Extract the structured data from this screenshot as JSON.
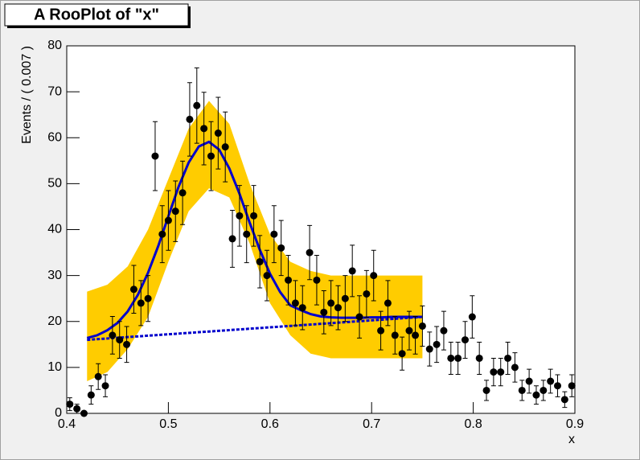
{
  "chart_data": {
    "type": "scatter",
    "title": "A RooPlot of \"x\"",
    "x_label": "x",
    "y_label": "Events / ( 0.007 )",
    "xlim": [
      0.4,
      0.9
    ],
    "ylim": [
      0,
      80
    ],
    "xticks": [
      0.4,
      0.5,
      0.6,
      0.7,
      0.8,
      0.9
    ],
    "yticks": [
      0,
      10,
      20,
      30,
      40,
      50,
      60,
      70,
      80
    ],
    "points": {
      "color": "#000000",
      "x": [
        0.403,
        0.41,
        0.417,
        0.424,
        0.431,
        0.438,
        0.445,
        0.452,
        0.459,
        0.466,
        0.473,
        0.48,
        0.487,
        0.494,
        0.5,
        0.507,
        0.514,
        0.521,
        0.528,
        0.535,
        0.542,
        0.549,
        0.556,
        0.563,
        0.57,
        0.577,
        0.584,
        0.59,
        0.597,
        0.604,
        0.611,
        0.618,
        0.625,
        0.632,
        0.639,
        0.646,
        0.653,
        0.66,
        0.667,
        0.674,
        0.681,
        0.688,
        0.695,
        0.702,
        0.709,
        0.716,
        0.723,
        0.73,
        0.737,
        0.743,
        0.75,
        0.757,
        0.764,
        0.771,
        0.778,
        0.785,
        0.792,
        0.799,
        0.806,
        0.813,
        0.82,
        0.827,
        0.834,
        0.841,
        0.848,
        0.855,
        0.862,
        0.869,
        0.876,
        0.883,
        0.89,
        0.897
      ],
      "values": [
        2,
        1,
        0,
        4,
        8,
        6,
        17,
        16,
        15,
        27,
        24,
        25,
        56,
        39,
        42,
        44,
        48,
        64,
        67,
        62,
        56,
        61,
        58,
        38,
        43,
        39,
        43,
        33,
        30,
        39,
        36,
        29,
        24,
        23,
        35,
        29,
        22,
        24,
        23,
        25,
        31,
        21,
        26,
        30,
        18,
        24,
        17,
        13,
        18,
        17,
        19,
        14,
        15,
        18,
        12,
        12,
        16,
        21,
        12,
        5,
        9,
        9,
        12,
        10,
        5,
        7,
        4,
        5,
        7,
        6,
        3,
        6
      ],
      "errors": [
        1.4,
        1,
        0,
        2,
        2.8,
        2.4,
        4.1,
        4,
        3.9,
        5.2,
        4.9,
        5,
        7.5,
        6.2,
        6.5,
        6.6,
        6.9,
        8,
        8.2,
        7.9,
        7.5,
        7.8,
        7.6,
        6.2,
        6.6,
        6.2,
        6.6,
        5.7,
        5.5,
        6.2,
        6,
        5.4,
        4.9,
        4.8,
        5.9,
        5.4,
        4.7,
        4.9,
        4.8,
        5,
        5.6,
        4.6,
        5.1,
        5.5,
        4.2,
        4.9,
        4.1,
        3.6,
        4.2,
        4.1,
        4.4,
        3.7,
        3.9,
        4.2,
        3.5,
        3.5,
        4,
        4.6,
        3.5,
        2.2,
        3,
        3,
        3.5,
        3.2,
        2.2,
        2.6,
        2,
        2.2,
        2.6,
        2.4,
        1.7,
        2.4
      ]
    },
    "band": {
      "color": "#ffcc00",
      "x": [
        0.42,
        0.44,
        0.46,
        0.48,
        0.5,
        0.52,
        0.54,
        0.56,
        0.58,
        0.6,
        0.62,
        0.64,
        0.66,
        0.7,
        0.75
      ],
      "upper": [
        26.5,
        28,
        32,
        40,
        51,
        62,
        68,
        63,
        50,
        39,
        33,
        31,
        30,
        30,
        30
      ],
      "lower": [
        7,
        9,
        14,
        21,
        33,
        44,
        49,
        47,
        37,
        24,
        17,
        13,
        12,
        12,
        12
      ]
    },
    "fit": {
      "color": "#0000cc",
      "x": [
        0.42,
        0.43,
        0.44,
        0.45,
        0.46,
        0.47,
        0.48,
        0.49,
        0.5,
        0.51,
        0.52,
        0.53,
        0.54,
        0.55,
        0.56,
        0.57,
        0.58,
        0.59,
        0.6,
        0.61,
        0.62,
        0.63,
        0.64,
        0.65,
        0.66,
        0.67,
        0.68,
        0.69,
        0.7,
        0.71,
        0.72,
        0.73,
        0.74,
        0.75
      ],
      "values": [
        16.4,
        17.0,
        18.1,
        19.7,
        22.2,
        25.8,
        30.6,
        36.4,
        42.9,
        49.3,
        54.6,
        58.1,
        59.1,
        57.4,
        53.3,
        47.8,
        41.5,
        35.6,
        30.4,
        26.4,
        23.5,
        22.5,
        21.6,
        21.1,
        20.9,
        20.8,
        20.8,
        20.8,
        20.9,
        20.9,
        21,
        21,
        21,
        21
      ]
    },
    "background": {
      "color": "#0000cc",
      "x": [
        0.42,
        0.75
      ],
      "values": [
        16,
        21
      ]
    }
  }
}
